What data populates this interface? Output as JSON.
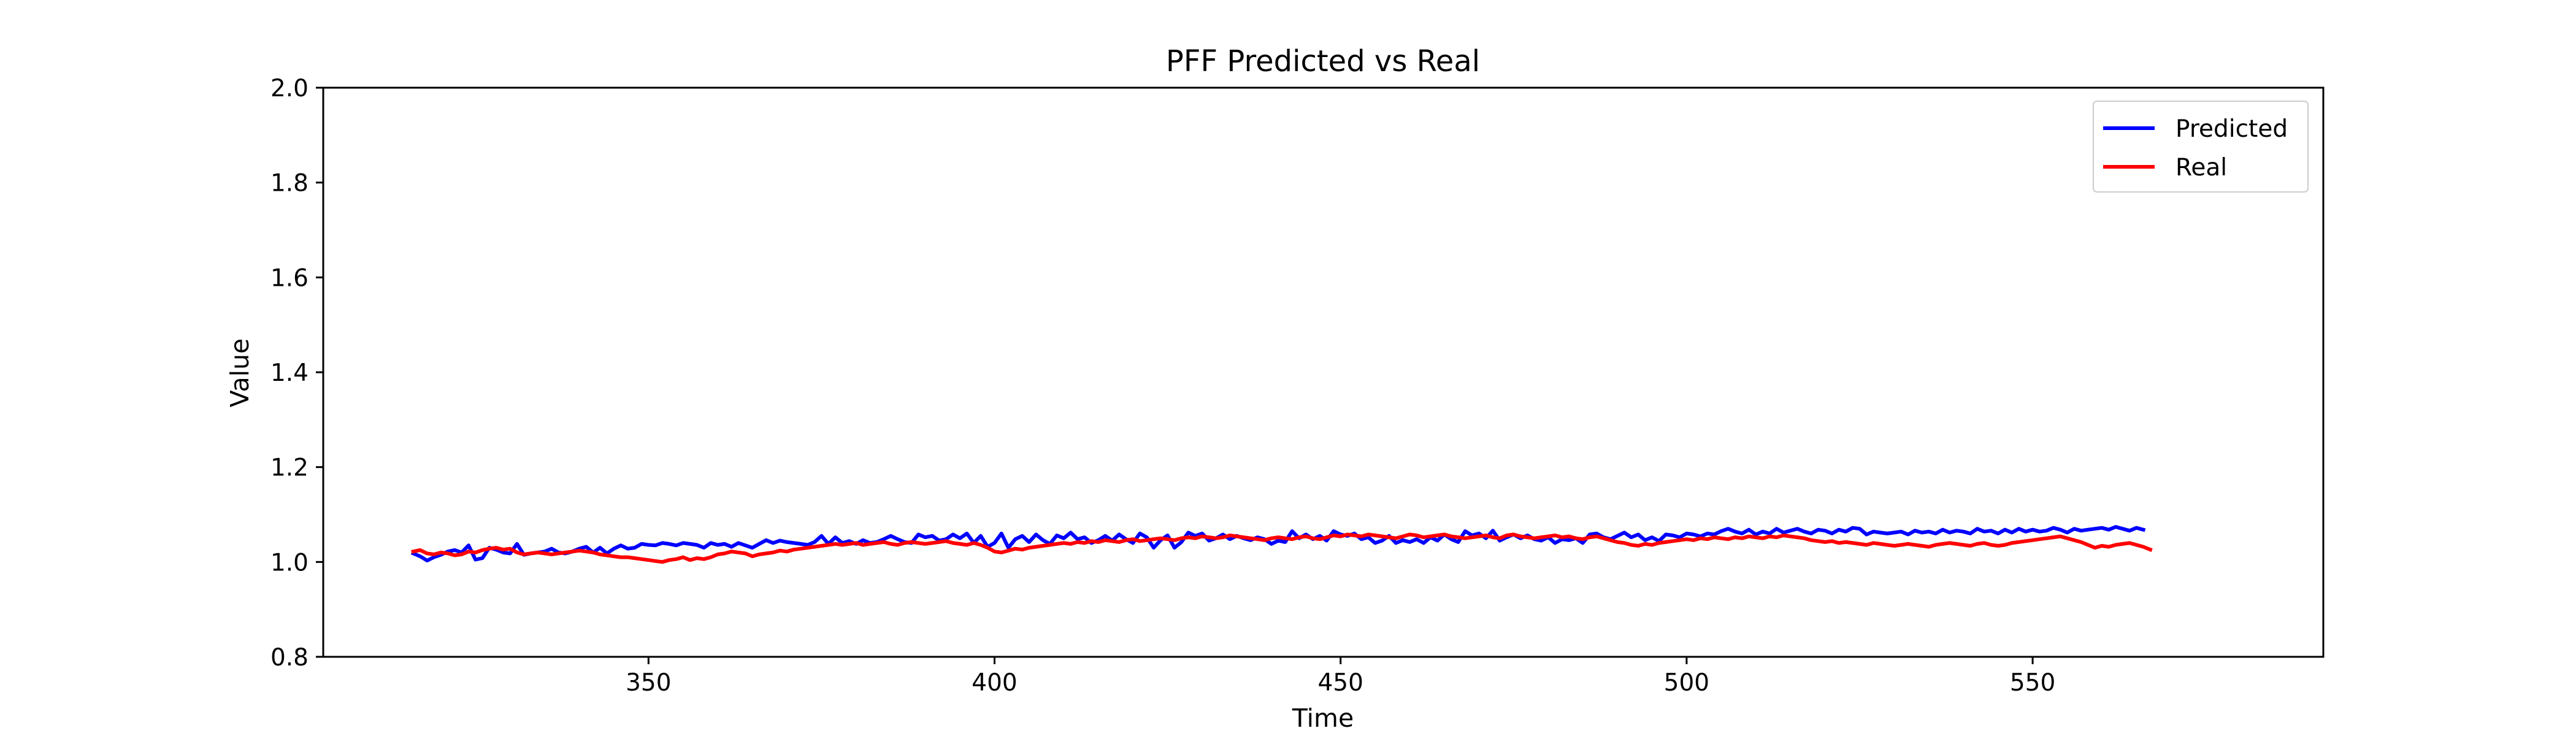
{
  "chart_data": {
    "type": "line",
    "title": "PFF Predicted vs Real",
    "xlabel": "Time",
    "ylabel": "Value",
    "xlim": [
      303,
      592
    ],
    "ylim": [
      0.8,
      2.0
    ],
    "x_ticks": [
      350,
      400,
      450,
      500,
      550
    ],
    "x_tick_labels": [
      "350",
      "400",
      "450",
      "500",
      "550"
    ],
    "y_ticks": [
      0.8,
      1.0,
      1.2,
      1.4,
      1.6,
      1.8,
      2.0
    ],
    "y_tick_labels": [
      "0.8",
      "1.0",
      "1.2",
      "1.4",
      "1.6",
      "1.8",
      "2.0"
    ],
    "grid": false,
    "legend_position": "top-right",
    "x_start": 316,
    "x_step": 1,
    "series": [
      {
        "name": "Predicted",
        "color": "#0000ff",
        "values": [
          1.018,
          1.012,
          1.003,
          1.01,
          1.015,
          1.022,
          1.025,
          1.02,
          1.035,
          1.005,
          1.008,
          1.03,
          1.026,
          1.02,
          1.018,
          1.038,
          1.015,
          1.018,
          1.02,
          1.022,
          1.028,
          1.02,
          1.018,
          1.022,
          1.028,
          1.032,
          1.02,
          1.03,
          1.018,
          1.028,
          1.035,
          1.028,
          1.03,
          1.038,
          1.036,
          1.035,
          1.04,
          1.038,
          1.035,
          1.04,
          1.038,
          1.036,
          1.03,
          1.04,
          1.036,
          1.038,
          1.032,
          1.04,
          1.035,
          1.03,
          1.038,
          1.046,
          1.04,
          1.045,
          1.042,
          1.04,
          1.038,
          1.036,
          1.042,
          1.055,
          1.038,
          1.052,
          1.04,
          1.044,
          1.038,
          1.046,
          1.04,
          1.042,
          1.048,
          1.055,
          1.048,
          1.042,
          1.04,
          1.058,
          1.052,
          1.055,
          1.045,
          1.048,
          1.058,
          1.05,
          1.06,
          1.04,
          1.055,
          1.032,
          1.04,
          1.06,
          1.03,
          1.048,
          1.055,
          1.042,
          1.058,
          1.046,
          1.038,
          1.056,
          1.05,
          1.062,
          1.048,
          1.052,
          1.04,
          1.046,
          1.055,
          1.045,
          1.058,
          1.048,
          1.04,
          1.06,
          1.052,
          1.03,
          1.046,
          1.056,
          1.03,
          1.042,
          1.062,
          1.055,
          1.06,
          1.045,
          1.05,
          1.058,
          1.048,
          1.055,
          1.05,
          1.046,
          1.052,
          1.048,
          1.038,
          1.045,
          1.042,
          1.065,
          1.05,
          1.058,
          1.048,
          1.055,
          1.045,
          1.065,
          1.058,
          1.055,
          1.06,
          1.048,
          1.052,
          1.04,
          1.045,
          1.055,
          1.04,
          1.046,
          1.042,
          1.048,
          1.04,
          1.052,
          1.045,
          1.058,
          1.048,
          1.042,
          1.065,
          1.056,
          1.06,
          1.05,
          1.066,
          1.045,
          1.052,
          1.058,
          1.05,
          1.056,
          1.048,
          1.045,
          1.052,
          1.04,
          1.048,
          1.046,
          1.05,
          1.04,
          1.058,
          1.06,
          1.052,
          1.048,
          1.055,
          1.062,
          1.052,
          1.058,
          1.046,
          1.052,
          1.044,
          1.058,
          1.056,
          1.052,
          1.06,
          1.058,
          1.054,
          1.06,
          1.058,
          1.065,
          1.07,
          1.064,
          1.06,
          1.068,
          1.058,
          1.064,
          1.06,
          1.07,
          1.062,
          1.066,
          1.07,
          1.064,
          1.06,
          1.068,
          1.066,
          1.06,
          1.068,
          1.064,
          1.072,
          1.07,
          1.058,
          1.064,
          1.062,
          1.06,
          1.062,
          1.064,
          1.058,
          1.066,
          1.062,
          1.064,
          1.06,
          1.068,
          1.062,
          1.066,
          1.064,
          1.06,
          1.07,
          1.064,
          1.066,
          1.06,
          1.068,
          1.062,
          1.07,
          1.064,
          1.068,
          1.064,
          1.066,
          1.072,
          1.068,
          1.062,
          1.07,
          1.066,
          1.068,
          1.07,
          1.072,
          1.068,
          1.074,
          1.07,
          1.066,
          1.072,
          1.068
        ]
      },
      {
        "name": "Real",
        "color": "#ff0000",
        "values": [
          1.022,
          1.025,
          1.018,
          1.016,
          1.02,
          1.018,
          1.014,
          1.016,
          1.022,
          1.02,
          1.025,
          1.028,
          1.03,
          1.026,
          1.028,
          1.02,
          1.016,
          1.018,
          1.02,
          1.018,
          1.016,
          1.018,
          1.02,
          1.022,
          1.024,
          1.022,
          1.02,
          1.016,
          1.014,
          1.012,
          1.01,
          1.01,
          1.008,
          1.006,
          1.004,
          1.002,
          1.0,
          1.004,
          1.006,
          1.01,
          1.004,
          1.008,
          1.006,
          1.01,
          1.016,
          1.018,
          1.022,
          1.02,
          1.018,
          1.012,
          1.016,
          1.018,
          1.02,
          1.024,
          1.022,
          1.026,
          1.028,
          1.03,
          1.032,
          1.034,
          1.036,
          1.038,
          1.036,
          1.038,
          1.04,
          1.036,
          1.038,
          1.04,
          1.042,
          1.038,
          1.036,
          1.04,
          1.042,
          1.04,
          1.038,
          1.04,
          1.042,
          1.044,
          1.04,
          1.038,
          1.036,
          1.04,
          1.036,
          1.03,
          1.022,
          1.02,
          1.024,
          1.028,
          1.026,
          1.03,
          1.032,
          1.034,
          1.036,
          1.038,
          1.04,
          1.038,
          1.042,
          1.04,
          1.044,
          1.042,
          1.046,
          1.044,
          1.042,
          1.046,
          1.048,
          1.044,
          1.046,
          1.048,
          1.05,
          1.048,
          1.046,
          1.05,
          1.052,
          1.05,
          1.054,
          1.052,
          1.05,
          1.052,
          1.056,
          1.054,
          1.052,
          1.05,
          1.048,
          1.046,
          1.05,
          1.052,
          1.05,
          1.048,
          1.052,
          1.054,
          1.05,
          1.048,
          1.052,
          1.056,
          1.054,
          1.058,
          1.056,
          1.054,
          1.058,
          1.056,
          1.054,
          1.052,
          1.05,
          1.054,
          1.058,
          1.056,
          1.052,
          1.054,
          1.056,
          1.058,
          1.054,
          1.052,
          1.05,
          1.052,
          1.054,
          1.056,
          1.052,
          1.05,
          1.056,
          1.058,
          1.054,
          1.052,
          1.05,
          1.052,
          1.054,
          1.056,
          1.052,
          1.054,
          1.05,
          1.048,
          1.052,
          1.054,
          1.05,
          1.046,
          1.042,
          1.04,
          1.036,
          1.034,
          1.038,
          1.036,
          1.04,
          1.042,
          1.044,
          1.046,
          1.048,
          1.046,
          1.05,
          1.048,
          1.052,
          1.05,
          1.048,
          1.052,
          1.05,
          1.054,
          1.052,
          1.05,
          1.054,
          1.052,
          1.056,
          1.054,
          1.052,
          1.05,
          1.046,
          1.044,
          1.042,
          1.044,
          1.04,
          1.042,
          1.04,
          1.038,
          1.036,
          1.04,
          1.038,
          1.036,
          1.034,
          1.036,
          1.038,
          1.036,
          1.034,
          1.032,
          1.036,
          1.038,
          1.04,
          1.038,
          1.036,
          1.034,
          1.038,
          1.04,
          1.036,
          1.034,
          1.036,
          1.04,
          1.042,
          1.044,
          1.046,
          1.048,
          1.05,
          1.052,
          1.054,
          1.05,
          1.046,
          1.042,
          1.036,
          1.03,
          1.034,
          1.032,
          1.036,
          1.038,
          1.04,
          1.036,
          1.032,
          1.026
        ]
      }
    ]
  }
}
